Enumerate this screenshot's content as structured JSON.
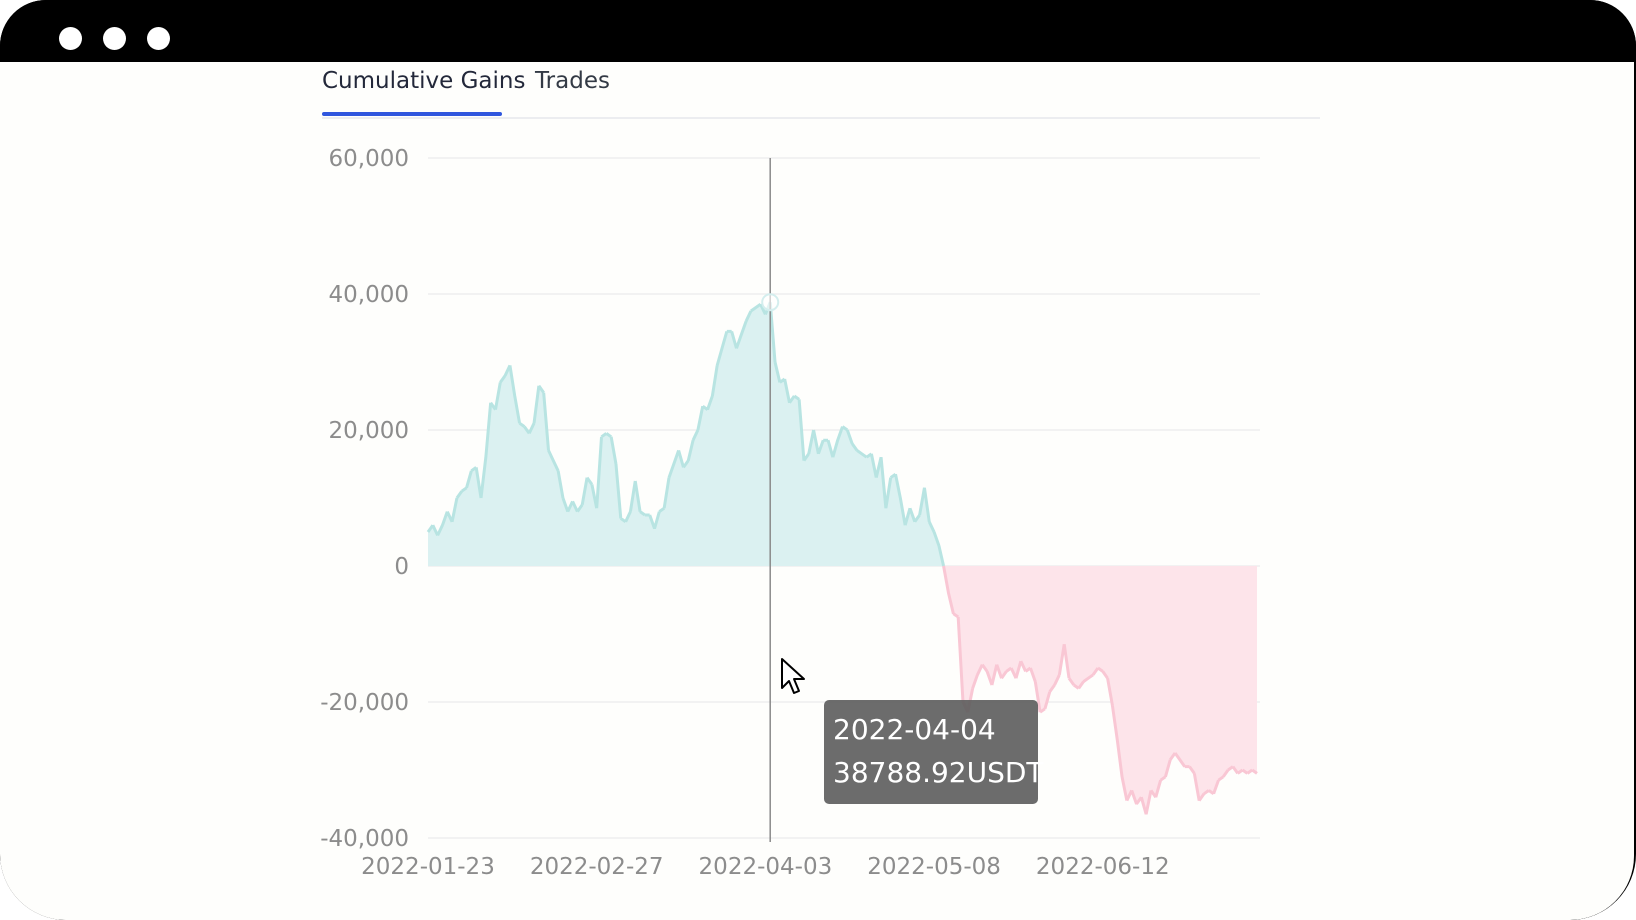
{
  "tabs": [
    {
      "label": "Cumulative Gains",
      "active": true
    },
    {
      "label": "Trades",
      "active": false
    }
  ],
  "tooltip": {
    "date": "2022-04-04",
    "value": "38788.92USDT"
  },
  "colors": {
    "positive_fill": "#dbf1f1",
    "positive_line": "#b8e4e2",
    "negative_fill": "#fde4ea",
    "negative_line": "#f9c7d4",
    "active_tab": "#2f56de"
  },
  "chart_data": {
    "type": "area",
    "title": "",
    "xlabel": "",
    "ylabel": "",
    "ylim": [
      -40000,
      60000
    ],
    "yticks": [
      60000,
      40000,
      20000,
      0,
      -20000,
      -40000
    ],
    "ytick_labels": [
      "60,000",
      "40,000",
      "20,000",
      "0",
      "-20,000",
      "-40,000"
    ],
    "xtick_labels": [
      "2022-01-23",
      "2022-02-27",
      "2022-04-03",
      "2022-05-08",
      "2022-06-12"
    ],
    "xrange": [
      "2022-01-23",
      "2022-07-14"
    ],
    "grid": true,
    "highlight": {
      "x": "2022-04-04",
      "y": 38788.92
    },
    "series": [
      {
        "values": [
          [
            "2022-01-23",
            5000
          ],
          [
            "2022-01-24",
            6000
          ],
          [
            "2022-01-25",
            4500
          ],
          [
            "2022-01-26",
            6000
          ],
          [
            "2022-01-27",
            8000
          ],
          [
            "2022-01-28",
            6500
          ],
          [
            "2022-01-29",
            10000
          ],
          [
            "2022-01-30",
            11000
          ],
          [
            "2022-01-31",
            11500
          ],
          [
            "2022-02-01",
            14000
          ],
          [
            "2022-02-02",
            14500
          ],
          [
            "2022-02-03",
            10000
          ],
          [
            "2022-02-04",
            16000
          ],
          [
            "2022-02-05",
            24000
          ],
          [
            "2022-02-06",
            23000
          ],
          [
            "2022-02-07",
            27000
          ],
          [
            "2022-02-08",
            28000
          ],
          [
            "2022-02-09",
            29500
          ],
          [
            "2022-02-10",
            25000
          ],
          [
            "2022-02-11",
            21000
          ],
          [
            "2022-02-12",
            20500
          ],
          [
            "2022-02-13",
            19500
          ],
          [
            "2022-02-14",
            21000
          ],
          [
            "2022-02-15",
            26500
          ],
          [
            "2022-02-16",
            25500
          ],
          [
            "2022-02-17",
            17000
          ],
          [
            "2022-02-18",
            15500
          ],
          [
            "2022-02-19",
            14000
          ],
          [
            "2022-02-20",
            10000
          ],
          [
            "2022-02-21",
            8000
          ],
          [
            "2022-02-22",
            9500
          ],
          [
            "2022-02-23",
            8000
          ],
          [
            "2022-02-24",
            9000
          ],
          [
            "2022-02-25",
            13000
          ],
          [
            "2022-02-26",
            12000
          ],
          [
            "2022-02-27",
            8500
          ],
          [
            "2022-02-28",
            19000
          ],
          [
            "2022-03-01",
            19500
          ],
          [
            "2022-03-02",
            19000
          ],
          [
            "2022-03-03",
            15000
          ],
          [
            "2022-03-04",
            7000
          ],
          [
            "2022-03-05",
            6500
          ],
          [
            "2022-03-06",
            8000
          ],
          [
            "2022-03-07",
            12500
          ],
          [
            "2022-03-08",
            8000
          ],
          [
            "2022-03-09",
            7500
          ],
          [
            "2022-03-10",
            7500
          ],
          [
            "2022-03-11",
            5500
          ],
          [
            "2022-03-12",
            8000
          ],
          [
            "2022-03-13",
            8500
          ],
          [
            "2022-03-14",
            13000
          ],
          [
            "2022-03-15",
            15000
          ],
          [
            "2022-03-16",
            17000
          ],
          [
            "2022-03-17",
            14500
          ],
          [
            "2022-03-18",
            15500
          ],
          [
            "2022-03-19",
            18500
          ],
          [
            "2022-03-20",
            20000
          ],
          [
            "2022-03-21",
            23500
          ],
          [
            "2022-03-22",
            23000
          ],
          [
            "2022-03-23",
            25000
          ],
          [
            "2022-03-24",
            29500
          ],
          [
            "2022-03-25",
            32000
          ],
          [
            "2022-03-26",
            34500
          ],
          [
            "2022-03-27",
            34500
          ],
          [
            "2022-03-28",
            32000
          ],
          [
            "2022-03-29",
            34000
          ],
          [
            "2022-03-30",
            36000
          ],
          [
            "2022-03-31",
            37500
          ],
          [
            "2022-04-01",
            38000
          ],
          [
            "2022-04-02",
            38500
          ],
          [
            "2022-04-03",
            37000
          ],
          [
            "2022-04-04",
            38788.92
          ],
          [
            "2022-04-05",
            30000
          ],
          [
            "2022-04-06",
            27000
          ],
          [
            "2022-04-07",
            27500
          ],
          [
            "2022-04-08",
            24000
          ],
          [
            "2022-04-09",
            25000
          ],
          [
            "2022-04-10",
            24500
          ],
          [
            "2022-04-11",
            15500
          ],
          [
            "2022-04-12",
            16500
          ],
          [
            "2022-04-13",
            20000
          ],
          [
            "2022-04-14",
            16500
          ],
          [
            "2022-04-15",
            18500
          ],
          [
            "2022-04-16",
            18500
          ],
          [
            "2022-04-17",
            16000
          ],
          [
            "2022-04-18",
            18500
          ],
          [
            "2022-04-19",
            20500
          ],
          [
            "2022-04-20",
            20000
          ],
          [
            "2022-04-21",
            18000
          ],
          [
            "2022-04-22",
            17000
          ],
          [
            "2022-04-23",
            16500
          ],
          [
            "2022-04-24",
            16000
          ],
          [
            "2022-04-25",
            16500
          ],
          [
            "2022-04-26",
            13000
          ],
          [
            "2022-04-27",
            16000
          ],
          [
            "2022-04-28",
            8500
          ],
          [
            "2022-04-29",
            13000
          ],
          [
            "2022-04-30",
            13500
          ],
          [
            "2022-05-01",
            10000
          ],
          [
            "2022-05-02",
            6000
          ],
          [
            "2022-05-03",
            8500
          ],
          [
            "2022-05-04",
            6500
          ],
          [
            "2022-05-05",
            7500
          ],
          [
            "2022-05-06",
            11500
          ],
          [
            "2022-05-07",
            6500
          ],
          [
            "2022-05-08",
            5000
          ],
          [
            "2022-05-09",
            3000
          ],
          [
            "2022-05-10",
            -100
          ],
          [
            "2022-05-11",
            -4000
          ],
          [
            "2022-05-12",
            -7000
          ],
          [
            "2022-05-13",
            -7500
          ],
          [
            "2022-05-14",
            -20000
          ],
          [
            "2022-05-15",
            -21500
          ],
          [
            "2022-05-16",
            -18000
          ],
          [
            "2022-05-17",
            -16000
          ],
          [
            "2022-05-18",
            -14500
          ],
          [
            "2022-05-19",
            -15500
          ],
          [
            "2022-05-20",
            -17500
          ],
          [
            "2022-05-21",
            -14500
          ],
          [
            "2022-05-22",
            -16500
          ],
          [
            "2022-05-23",
            -15500
          ],
          [
            "2022-05-24",
            -15000
          ],
          [
            "2022-05-25",
            -16500
          ],
          [
            "2022-05-26",
            -14000
          ],
          [
            "2022-05-27",
            -15500
          ],
          [
            "2022-05-28",
            -15000
          ],
          [
            "2022-05-29",
            -17000
          ],
          [
            "2022-05-30",
            -21500
          ],
          [
            "2022-05-31",
            -21000
          ],
          [
            "2022-06-01",
            -18500
          ],
          [
            "2022-06-02",
            -17500
          ],
          [
            "2022-06-03",
            -16000
          ],
          [
            "2022-06-04",
            -11500
          ],
          [
            "2022-06-05",
            -16500
          ],
          [
            "2022-06-06",
            -17500
          ],
          [
            "2022-06-07",
            -18000
          ],
          [
            "2022-06-08",
            -17000
          ],
          [
            "2022-06-09",
            -16500
          ],
          [
            "2022-06-10",
            -16000
          ],
          [
            "2022-06-11",
            -15000
          ],
          [
            "2022-06-12",
            -15500
          ],
          [
            "2022-06-13",
            -16500
          ],
          [
            "2022-06-14",
            -20500
          ],
          [
            "2022-06-15",
            -25500
          ],
          [
            "2022-06-16",
            -31000
          ],
          [
            "2022-06-17",
            -34500
          ],
          [
            "2022-06-18",
            -33000
          ],
          [
            "2022-06-19",
            -35000
          ],
          [
            "2022-06-20",
            -34000
          ],
          [
            "2022-06-21",
            -36500
          ],
          [
            "2022-06-22",
            -33000
          ],
          [
            "2022-06-23",
            -34000
          ],
          [
            "2022-06-24",
            -31500
          ],
          [
            "2022-06-25",
            -31000
          ],
          [
            "2022-06-26",
            -28500
          ],
          [
            "2022-06-27",
            -27500
          ],
          [
            "2022-06-28",
            -28500
          ],
          [
            "2022-06-29",
            -29500
          ],
          [
            "2022-06-30",
            -29500
          ],
          [
            "2022-07-01",
            -30500
          ],
          [
            "2022-07-02",
            -34500
          ],
          [
            "2022-07-03",
            -33500
          ],
          [
            "2022-07-04",
            -33000
          ],
          [
            "2022-07-05",
            -33500
          ],
          [
            "2022-07-06",
            -31500
          ],
          [
            "2022-07-07",
            -31000
          ],
          [
            "2022-07-08",
            -30000
          ],
          [
            "2022-07-09",
            -29500
          ],
          [
            "2022-07-10",
            -30500
          ],
          [
            "2022-07-11",
            -30000
          ],
          [
            "2022-07-12",
            -30500
          ],
          [
            "2022-07-13",
            -30000
          ],
          [
            "2022-07-14",
            -30500
          ]
        ]
      }
    ]
  }
}
